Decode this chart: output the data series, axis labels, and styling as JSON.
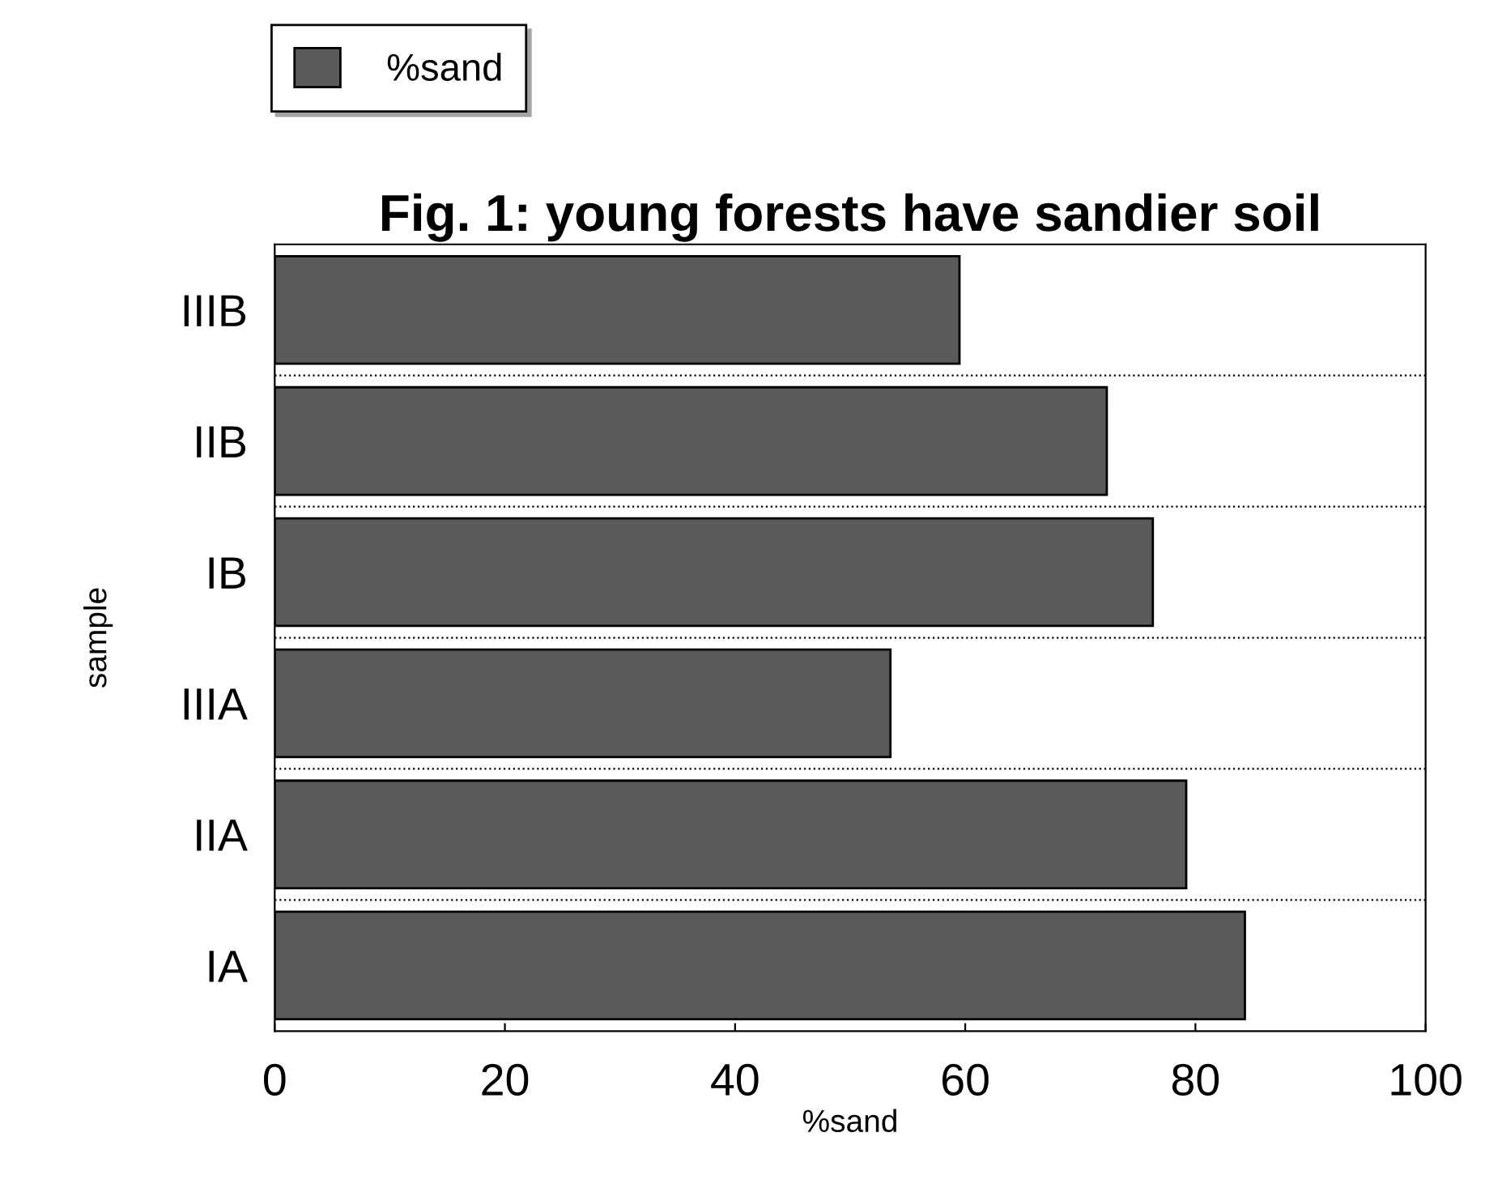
{
  "chart_data": {
    "type": "bar",
    "orientation": "horizontal",
    "title": "Fig. 1: young forests have sandier soil",
    "xlabel": "%sand",
    "ylabel": "sample",
    "categories": [
      "IIIB",
      "IIB",
      "IB",
      "IIIA",
      "IIA",
      "IA"
    ],
    "series": [
      {
        "name": "%sand",
        "color": "#5a5a5a",
        "values": [
          59.5,
          72.3,
          76.3,
          53.5,
          79.2,
          84.3
        ]
      }
    ],
    "xlim": [
      0,
      100
    ],
    "xticks": [
      0,
      20,
      40,
      60,
      80,
      100
    ],
    "legend": "top left"
  }
}
